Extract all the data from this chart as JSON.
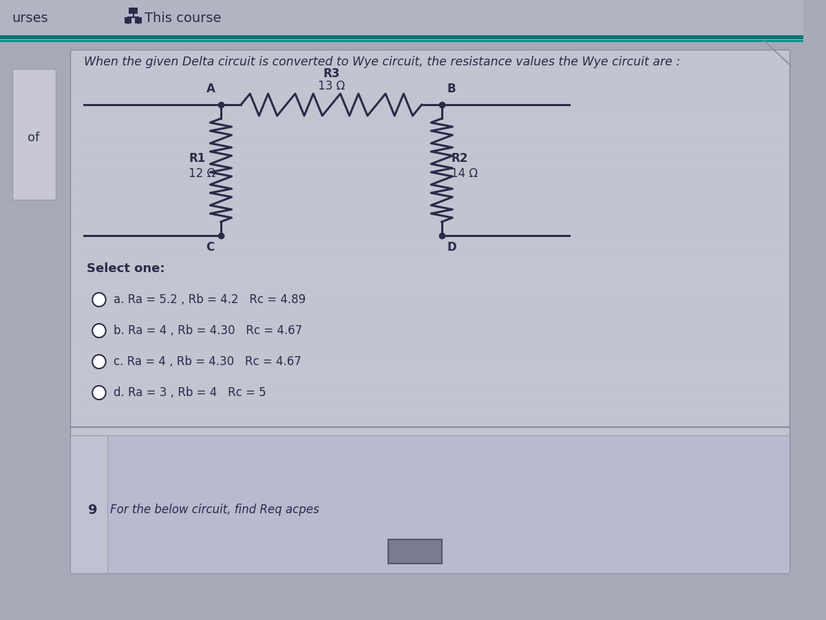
{
  "bg_color": "#a8a8b8",
  "header_bg": "#b8b8c8",
  "card_bg": "#c0c0cc",
  "header_text": "urses",
  "header_course_text": "This course",
  "question_text": "When the given Delta circuit is converted to Wye circuit, the resistance values the Wye circuit are :",
  "r3_label": "R3",
  "r3_value": "13 Ω",
  "r1_label": "R1",
  "r1_value": "12 Ω",
  "r2_label": "R2",
  "r2_value": "14 Ω",
  "node_A": "A",
  "node_B": "B",
  "node_C": "C",
  "node_D": "D",
  "select_one": "Select one:",
  "options": [
    "a. Ra = 5.2 , Rb = 4.2   Rc = 4.89",
    "b. Ra = 4 , Rb = 4.30   Rc = 4.67",
    "c. Ra = 4 , Rb = 4.30   Rc = 4.67",
    "d. Ra = 3 , Rb = 4   Rc = 5"
  ],
  "bottom_text": "For the below circuit, find Req acpes",
  "bottom_num": "9",
  "text_dark": "#2a2a4a",
  "line_color": "#2a2a4a",
  "teal_line1": "#007070",
  "teal_line2": "#009090",
  "of_text": "of"
}
